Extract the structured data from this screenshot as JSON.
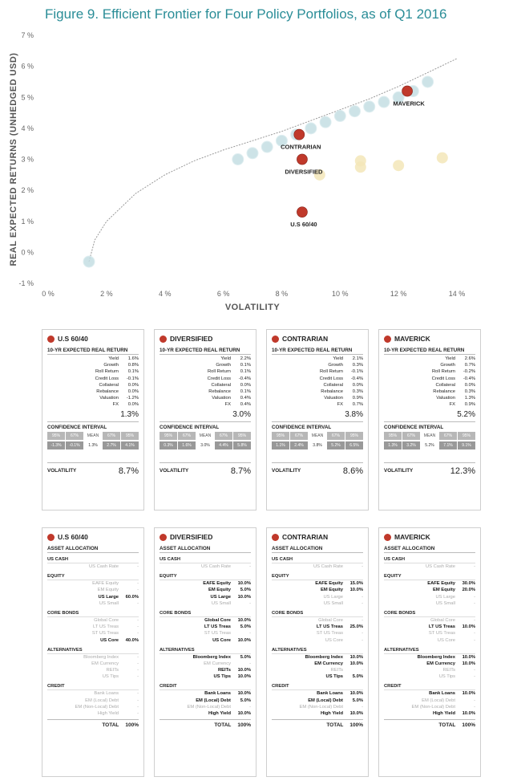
{
  "title": "Figure 9. Efficient Frontier for Four Policy Portfolios, as of Q1 2016",
  "chart_data": {
    "type": "scatter",
    "xlabel": "VOLATILITY",
    "ylabel": "REAL EXPECTED RETURNS (UNHEDGED USD)",
    "xlim": [
      0,
      14
    ],
    "ylim": [
      -1,
      7
    ],
    "x_ticks": [
      "0 %",
      "2 %",
      "4 %",
      "6 %",
      "8 %",
      "10 %",
      "12 %",
      "14 %"
    ],
    "y_ticks": [
      "-1 %",
      "0 %",
      "1 %",
      "2 %",
      "3 %",
      "4 %",
      "5 %",
      "6 %",
      "7 %"
    ],
    "frontier_curve": [
      [
        1.4,
        -0.3
      ],
      [
        1.6,
        0.4
      ],
      [
        2.0,
        1.0
      ],
      [
        3.0,
        1.9
      ],
      [
        4.0,
        2.5
      ],
      [
        5.0,
        2.95
      ],
      [
        6.0,
        3.3
      ],
      [
        7.0,
        3.6
      ],
      [
        8.0,
        3.9
      ],
      [
        9.0,
        4.25
      ],
      [
        10.0,
        4.6
      ],
      [
        11.0,
        4.95
      ],
      [
        12.0,
        5.35
      ],
      [
        13.0,
        5.8
      ],
      [
        14.0,
        6.25
      ]
    ],
    "frontier_points": [
      [
        1.4,
        -0.3
      ],
      [
        6.5,
        3.0
      ],
      [
        7.0,
        3.2
      ],
      [
        7.5,
        3.4
      ],
      [
        8.0,
        3.6
      ],
      [
        8.5,
        3.8
      ],
      [
        9.0,
        4.0
      ],
      [
        9.5,
        4.2
      ],
      [
        10.0,
        4.4
      ],
      [
        10.5,
        4.55
      ],
      [
        11.0,
        4.7
      ],
      [
        11.5,
        4.85
      ],
      [
        12.0,
        5.0
      ],
      [
        12.5,
        5.2
      ],
      [
        13.0,
        5.5
      ]
    ],
    "other_points": [
      [
        9.3,
        2.5
      ],
      [
        10.7,
        2.75
      ],
      [
        10.7,
        2.95
      ],
      [
        12.0,
        2.8
      ],
      [
        13.5,
        3.05
      ]
    ],
    "series": [
      {
        "name": "MAVERICK",
        "x": 12.3,
        "y": 5.2
      },
      {
        "name": "CONTRARIAN",
        "x": 8.6,
        "y": 3.8
      },
      {
        "name": "DIVERSIFIED",
        "x": 8.7,
        "y": 3.0
      },
      {
        "name": "U.S 60/40",
        "x": 8.7,
        "y": 1.3
      }
    ]
  },
  "colors": {
    "accent": "#2a8d97",
    "marker": "#c0392b",
    "frontier": "#c5dfe3",
    "other": "#f3e6b8"
  },
  "labels": {
    "returns_title": "10-YR EXPECTED REAL RETURN",
    "ci_title": "CONFIDENCE INTERVAL",
    "volatility": "VOLATILITY",
    "asset_alloc": "ASSET ALLOCATION",
    "total": "TOTAL",
    "ci_headers": [
      "95%",
      "67%",
      "MEAN",
      "67%",
      "95%"
    ]
  },
  "return_rows": [
    "Yield",
    "Growth",
    "Roll Return",
    "Credit Loss",
    "Collateral",
    "Rebalance",
    "Valuation",
    "FX"
  ],
  "portfolios": [
    {
      "name": "U.S 60/40",
      "returns": [
        "1.6%",
        "0.8%",
        "0.1%",
        "-0.1%",
        "0.0%",
        "0.0%",
        "-1.2%",
        "0.0%"
      ],
      "total_return": "1.3%",
      "ci": [
        "-1.3%",
        "-0.1%",
        "1.3%",
        "2.7%",
        "4.1%"
      ],
      "volatility": "8.7%"
    },
    {
      "name": "DIVERSIFIED",
      "returns": [
        "2.2%",
        "0.1%",
        "0.1%",
        "-0.4%",
        "0.0%",
        "0.1%",
        "0.4%",
        "0.4%"
      ],
      "total_return": "3.0%",
      "ci": [
        "0.3%",
        "1.6%",
        "3.0%",
        "4.4%",
        "5.8%"
      ],
      "volatility": "8.7%"
    },
    {
      "name": "CONTRARIAN",
      "returns": [
        "2.1%",
        "0.3%",
        "-0.1%",
        "-0.4%",
        "0.0%",
        "0.3%",
        "0.9%",
        "0.7%"
      ],
      "total_return": "3.8%",
      "ci": [
        "1.1%",
        "2.4%",
        "3.8%",
        "5.2%",
        "6.5%"
      ],
      "volatility": "8.6%"
    },
    {
      "name": "MAVERICK",
      "returns": [
        "2.6%",
        "0.7%",
        "-0.2%",
        "-0.4%",
        "0.0%",
        "0.3%",
        "1.3%",
        "0.9%"
      ],
      "total_return": "5.2%",
      "ci": [
        "1.3%",
        "3.2%",
        "5.2%",
        "7.1%",
        "9.1%"
      ],
      "volatility": "12.3%"
    }
  ],
  "alloc_groups": [
    {
      "name": "US CASH",
      "items": [
        "US Cash Rate"
      ]
    },
    {
      "name": "EQUITY",
      "items": [
        "EAFE Equity",
        "EM Equity",
        "US Large",
        "US Small"
      ]
    },
    {
      "name": "CORE BONDS",
      "items": [
        "Global Core",
        "LT US Treas",
        "ST US Treas",
        "US Core"
      ]
    },
    {
      "name": "ALTERNATIVES",
      "items": [
        "Bloomberg Index",
        "EM Currency",
        "REITs",
        "US Tips"
      ]
    },
    {
      "name": "CREDIT",
      "items": [
        "Bank Loans",
        "EM (Local) Debt",
        "EM (Non-Local) Debt",
        "High Yield"
      ]
    }
  ],
  "allocations": [
    {
      "name": "U.S 60/40",
      "total": "100%",
      "values": [
        [
          "-"
        ],
        [
          "-",
          "-",
          "60.0%",
          "-"
        ],
        [
          "-",
          "-",
          "-",
          "40.0%"
        ],
        [
          "-",
          "-",
          "-",
          "-"
        ],
        [
          "-",
          "-",
          "-",
          "-"
        ]
      ]
    },
    {
      "name": "DIVERSIFIED",
      "total": "100%",
      "values": [
        [
          "-"
        ],
        [
          "10.0%",
          "5.0%",
          "10.0%",
          "-"
        ],
        [
          "10.0%",
          "5.0%",
          "-",
          "10.0%"
        ],
        [
          "5.0%",
          "-",
          "10.0%",
          "10.0%"
        ],
        [
          "10.0%",
          "5.0%",
          "-",
          "10.0%"
        ]
      ]
    },
    {
      "name": "CONTRARIAN",
      "total": "100%",
      "values": [
        [
          "-"
        ],
        [
          "15.0%",
          "10.0%",
          "-",
          "-"
        ],
        [
          "-",
          "25.0%",
          "-",
          "-"
        ],
        [
          "10.0%",
          "10.0%",
          "-",
          "5.0%"
        ],
        [
          "10.0%",
          "5.0%",
          "-",
          "10.0%"
        ]
      ]
    },
    {
      "name": "MAVERICK",
      "total": "100%",
      "values": [
        [
          "-"
        ],
        [
          "30.0%",
          "20.0%",
          "-",
          "-"
        ],
        [
          "-",
          "10.0%",
          "-",
          "-"
        ],
        [
          "10.0%",
          "10.0%",
          "-",
          "-"
        ],
        [
          "10.0%",
          "-",
          "-",
          "10.0%"
        ]
      ]
    }
  ]
}
